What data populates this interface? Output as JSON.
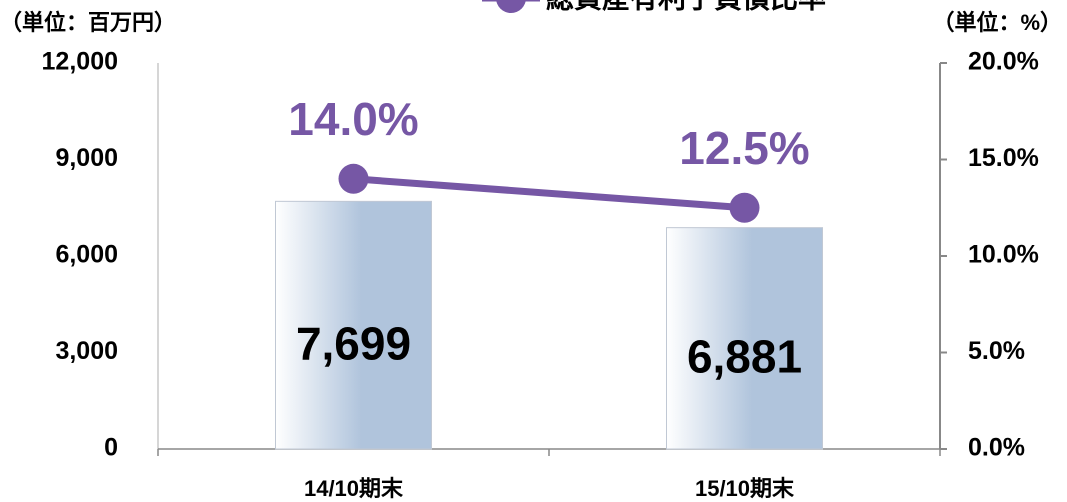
{
  "chart_data": {
    "type": "bar_line",
    "unit_left": "（単位：百万円）",
    "unit_right": "（単位：%）",
    "categories": [
      "14/10期末",
      "15/10期末"
    ],
    "series": [
      {
        "type": "bar",
        "color": "#b0c4dc",
        "values": [
          7699,
          6881
        ],
        "value_labels": [
          "7,699",
          "6,881"
        ]
      },
      {
        "type": "line",
        "name": "総資産有利子負債比率",
        "color": "#7657a5",
        "axis": "y2",
        "values": [
          14.0,
          12.5
        ],
        "value_labels": [
          "14.0%",
          "12.5%"
        ]
      }
    ],
    "ylim": [
      0,
      12000
    ],
    "yticks": [
      0,
      {
        "value": 3000,
        "label": "3,000"
      },
      {
        "value": 6000,
        "label": "6,000"
      },
      {
        "value": 9000,
        "label": "9,000"
      },
      {
        "value": 12000,
        "label": "12,000"
      }
    ],
    "y2lim": [
      0,
      20
    ],
    "y2ticks": [
      {
        "value": 0,
        "label": "0.0%"
      },
      {
        "value": 5,
        "label": "5.0%"
      },
      {
        "value": 10,
        "label": "10.0%"
      },
      {
        "value": 15,
        "label": "15.0%"
      },
      {
        "value": 20,
        "label": "20.0%"
      }
    ],
    "legend": "top"
  }
}
